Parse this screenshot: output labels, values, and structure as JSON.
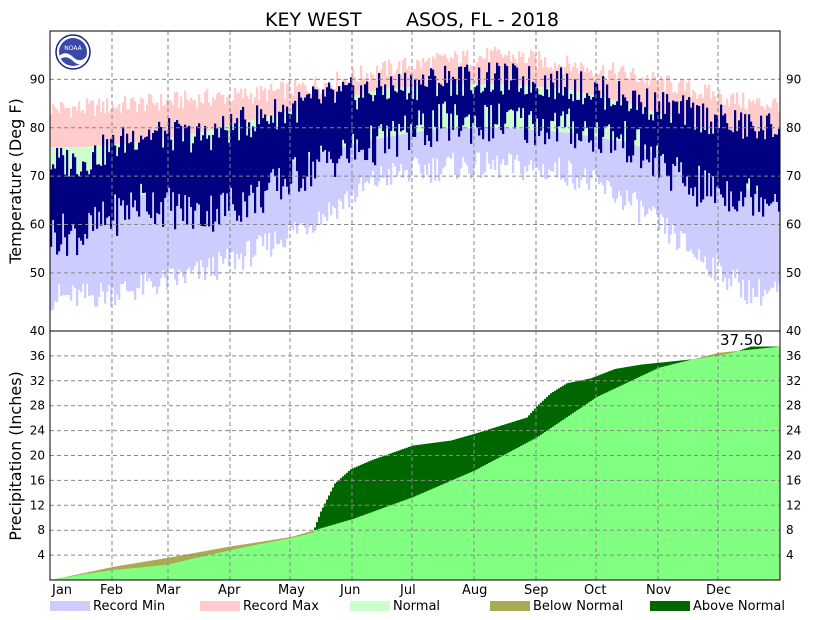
{
  "chart_data": {
    "title_left": "KEY WEST",
    "title_right": "ASOS, FL - 2018",
    "months": [
      "Jan",
      "Feb",
      "Mar",
      "Apr",
      "May",
      "Jun",
      "Jul",
      "Aug",
      "Sep",
      "Oct",
      "Nov",
      "Dec"
    ],
    "colors": {
      "record_min": "#ccccff",
      "record_max": "#ffcccc",
      "normal": "#ccffcc",
      "observed": "#000080",
      "below_normal": "#aaaa55",
      "above_normal": "#006600",
      "normal_precip": "#80ff80"
    },
    "temperature": {
      "type": "area",
      "ylabel": "Temperature (Deg F)",
      "ylim": [
        38,
        100
      ],
      "ticks": [
        50,
        60,
        70,
        80,
        90
      ],
      "month_days": [
        0,
        31,
        59,
        90,
        120,
        151,
        181,
        212,
        243,
        273,
        304,
        334,
        365
      ],
      "record_max_monthly": [
        84,
        85,
        86,
        87,
        89,
        92,
        94,
        95,
        93,
        91,
        88,
        85
      ],
      "record_min_monthly": [
        45,
        47,
        50,
        55,
        62,
        70,
        72,
        72,
        71,
        65,
        55,
        46
      ],
      "normal_high_monthly": [
        76,
        77,
        79,
        82,
        85,
        88,
        89,
        89,
        88,
        85,
        81,
        77
      ],
      "normal_low_monthly": [
        65,
        66,
        69,
        71,
        75,
        78,
        80,
        80,
        79,
        77,
        72,
        67
      ],
      "observed_high_monthly": [
        73,
        79,
        78,
        82,
        86,
        88,
        90,
        90,
        89,
        86,
        83,
        80
      ],
      "observed_low_monthly": [
        58,
        65,
        62,
        66,
        73,
        77,
        81,
        81,
        80,
        77,
        68,
        66
      ]
    },
    "precipitation": {
      "type": "area",
      "ylabel": "Precipitation (Inches)",
      "ylim": [
        0,
        40
      ],
      "ticks": [
        4,
        8,
        12,
        16,
        20,
        24,
        28,
        32,
        36,
        40
      ],
      "total_label": "37.50",
      "normal_cumulative": [
        [
          0,
          0
        ],
        [
          31,
          2.1
        ],
        [
          59,
          3.6
        ],
        [
          90,
          5.4
        ],
        [
          120,
          6.9
        ],
        [
          151,
          9.8
        ],
        [
          181,
          13.3
        ],
        [
          212,
          17.6
        ],
        [
          243,
          22.9
        ],
        [
          273,
          29.4
        ],
        [
          304,
          34.1
        ],
        [
          334,
          36.5
        ],
        [
          365,
          37.5
        ]
      ],
      "observed_cumulative": [
        [
          0,
          0
        ],
        [
          18,
          1.0
        ],
        [
          31,
          1.6
        ],
        [
          45,
          2.0
        ],
        [
          59,
          2.5
        ],
        [
          72,
          3.5
        ],
        [
          90,
          4.8
        ],
        [
          105,
          5.8
        ],
        [
          120,
          6.7
        ],
        [
          131,
          7.6
        ],
        [
          135,
          11.0
        ],
        [
          142,
          15.5
        ],
        [
          150,
          17.8
        ],
        [
          160,
          19.2
        ],
        [
          181,
          21.6
        ],
        [
          200,
          22.4
        ],
        [
          212,
          23.5
        ],
        [
          225,
          24.8
        ],
        [
          238,
          26.1
        ],
        [
          243,
          27.9
        ],
        [
          250,
          30.0
        ],
        [
          258,
          31.6
        ],
        [
          270,
          32.4
        ],
        [
          282,
          33.9
        ],
        [
          295,
          34.6
        ],
        [
          310,
          35.1
        ],
        [
          325,
          35.6
        ],
        [
          340,
          36.4
        ],
        [
          350,
          37.5
        ],
        [
          365,
          37.5
        ]
      ]
    },
    "legend": [
      {
        "label": "Record Min",
        "color_key": "record_min"
      },
      {
        "label": "Record Max",
        "color_key": "record_max"
      },
      {
        "label": "Normal",
        "color_key": "normal"
      },
      {
        "label": "Below Normal",
        "color_key": "below_normal"
      },
      {
        "label": "Above Normal",
        "color_key": "above_normal"
      }
    ]
  }
}
